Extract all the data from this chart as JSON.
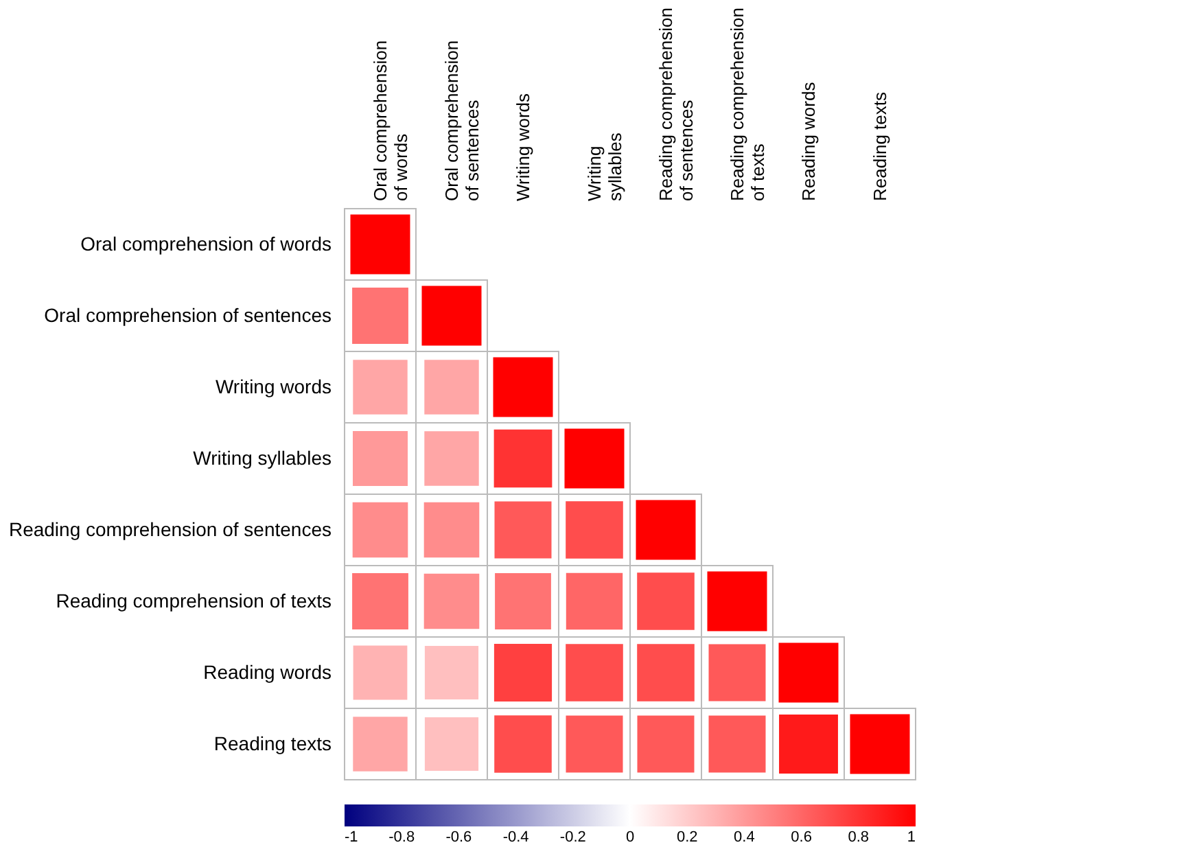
{
  "chart_data": {
    "type": "heatmap",
    "categories": [
      "Oral comprehension of words",
      "Oral comprehension of sentences",
      "Writing words",
      "Writing syllables",
      "Reading comprehension of sentences",
      "Reading comprehension of texts",
      "Reading words",
      "Reading texts"
    ],
    "y_categories": [
      "Oral comprehension of words",
      "Oral comprehension of sentences",
      "Writing words",
      "Writing syllables",
      "Reading comprehension of sentences",
      "Reading comprehension of texts",
      "Reading words",
      "Reading texts"
    ],
    "cells": [
      [
        1,
        null,
        null,
        null,
        null,
        null,
        null,
        null
      ],
      [
        0.55,
        1,
        null,
        null,
        null,
        null,
        null,
        null
      ],
      [
        0.35,
        0.35,
        1,
        null,
        null,
        null,
        null,
        null
      ],
      [
        0.4,
        0.35,
        0.8,
        1,
        null,
        null,
        null,
        null
      ],
      [
        0.45,
        0.45,
        0.65,
        0.7,
        1,
        null,
        null,
        null
      ],
      [
        0.55,
        0.45,
        0.55,
        0.6,
        0.7,
        1,
        null,
        null
      ],
      [
        0.3,
        0.25,
        0.75,
        0.7,
        0.7,
        0.65,
        1,
        null
      ],
      [
        0.35,
        0.25,
        0.7,
        0.65,
        0.65,
        0.65,
        0.9,
        1
      ]
    ],
    "clim": [
      -1,
      1
    ],
    "cticks": [
      -1,
      -0.8,
      -0.6,
      -0.4,
      -0.2,
      0,
      0.2,
      0.4,
      0.6,
      0.8,
      1
    ]
  }
}
